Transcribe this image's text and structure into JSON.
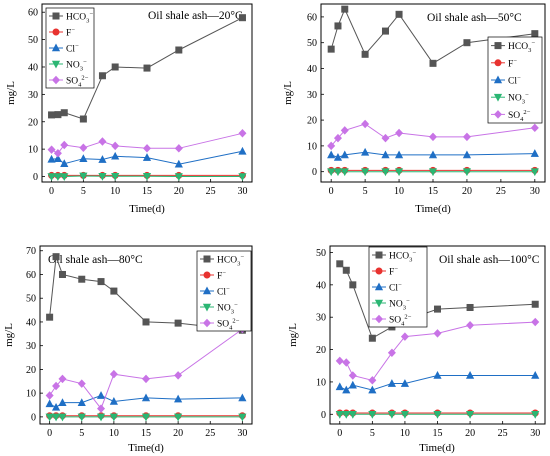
{
  "chart_data": [
    {
      "type": "line",
      "title": "Oil shale ash—20°C",
      "xlabel": "Time(d)",
      "ylabel": "mg/L",
      "xlim": [
        -1.5,
        31.5
      ],
      "ylim": [
        -2,
        63
      ],
      "xticks": [
        0,
        5,
        10,
        15,
        20,
        25,
        30
      ],
      "yticks": [
        0,
        10,
        20,
        30,
        40,
        50,
        60
      ],
      "legend_position": "top-left",
      "x": [
        0,
        1,
        2,
        5,
        8,
        10,
        15,
        20,
        30
      ],
      "series": [
        {
          "name": "HCO3⁻",
          "label": "HCO",
          "sub": "3",
          "sup": "−",
          "color": "#555555",
          "marker": "square",
          "values": [
            22.5,
            22.6,
            23.3,
            21.0,
            36.8,
            40.0,
            39.6,
            46.2,
            58.0
          ]
        },
        {
          "name": "F⁻",
          "label": "F",
          "sub": "",
          "sup": "−",
          "color": "#e8322f",
          "marker": "circle",
          "values": [
            0.4,
            0.4,
            0.4,
            0.4,
            0.4,
            0.4,
            0.4,
            0.4,
            0.4
          ]
        },
        {
          "name": "Cl⁻",
          "label": "Cl",
          "sub": "",
          "sup": "−",
          "color": "#1f6fc5",
          "marker": "triangle-up",
          "values": [
            6.3,
            6.5,
            4.7,
            6.5,
            6.2,
            7.4,
            6.9,
            4.5,
            9.2
          ]
        },
        {
          "name": "NO3⁻",
          "label": "NO",
          "sub": "3",
          "sup": "−",
          "color": "#2bb673",
          "marker": "triangle-down",
          "values": [
            0.0,
            0.0,
            0.0,
            0.2,
            0.1,
            0.1,
            0.1,
            0.0,
            0.0
          ]
        },
        {
          "name": "SO4²⁻",
          "label": "SO",
          "sub": "4",
          "sup": "2−",
          "color": "#c873e6",
          "marker": "diamond",
          "values": [
            9.8,
            8.5,
            11.5,
            10.5,
            12.8,
            11.2,
            10.3,
            10.3,
            15.8
          ]
        }
      ]
    },
    {
      "type": "line",
      "title": "Oil shale ash—50°C",
      "xlabel": "Time(d)",
      "ylabel": "mg/L",
      "xlim": [
        -1.5,
        31.5
      ],
      "ylim": [
        -4,
        65
      ],
      "xticks": [
        0,
        5,
        10,
        15,
        20,
        25,
        30
      ],
      "yticks": [
        0,
        10,
        20,
        30,
        40,
        50,
        60
      ],
      "legend_position": "right",
      "x": [
        0,
        1,
        2,
        5,
        8,
        10,
        15,
        20,
        30
      ],
      "series": [
        {
          "name": "HCO3⁻",
          "label": "HCO",
          "sub": "3",
          "sup": "−",
          "color": "#555555",
          "marker": "square",
          "values": [
            47.5,
            56.5,
            63.0,
            45.5,
            54.5,
            61.0,
            42.0,
            50.0,
            53.5
          ]
        },
        {
          "name": "F⁻",
          "label": "F",
          "sub": "",
          "sup": "−",
          "color": "#e8322f",
          "marker": "circle",
          "values": [
            0.5,
            0.5,
            0.5,
            0.5,
            0.5,
            0.5,
            0.5,
            0.5,
            0.5
          ]
        },
        {
          "name": "Cl⁻",
          "label": "Cl",
          "sub": "",
          "sup": "−",
          "color": "#1f6fc5",
          "marker": "triangle-up",
          "values": [
            6.5,
            5.5,
            6.5,
            7.5,
            6.5,
            6.5,
            6.5,
            6.5,
            7.0
          ]
        },
        {
          "name": "NO3⁻",
          "label": "NO",
          "sub": "3",
          "sup": "−",
          "color": "#2bb673",
          "marker": "triangle-down",
          "values": [
            0.0,
            0.0,
            0.0,
            0.0,
            0.0,
            0.0,
            0.0,
            0.0,
            0.0
          ]
        },
        {
          "name": "SO4²⁻",
          "label": "SO",
          "sub": "4",
          "sup": "2−",
          "color": "#c873e6",
          "marker": "diamond",
          "values": [
            10.0,
            13.0,
            16.0,
            18.5,
            13.0,
            15.0,
            13.5,
            13.5,
            17.0
          ]
        }
      ]
    },
    {
      "type": "line",
      "title": "Oil shale ash—80°C",
      "xlabel": "Time(d)",
      "ylabel": "mg/L",
      "xlim": [
        -1.5,
        31.5
      ],
      "ylim": [
        -3,
        72
      ],
      "xticks": [
        0,
        5,
        10,
        15,
        20,
        25,
        30
      ],
      "yticks": [
        0,
        10,
        20,
        30,
        40,
        50,
        60,
        70
      ],
      "legend_position": "right",
      "x": [
        0,
        1,
        2,
        5,
        8,
        10,
        15,
        20,
        30
      ],
      "series": [
        {
          "name": "HCO3⁻",
          "label": "HCO",
          "sub": "3",
          "sup": "−",
          "color": "#555555",
          "marker": "square",
          "values": [
            42.0,
            67.5,
            60.0,
            58.0,
            57.0,
            53.0,
            40.0,
            39.5,
            36.5
          ]
        },
        {
          "name": "F⁻",
          "label": "F",
          "sub": "",
          "sup": "−",
          "color": "#e8322f",
          "marker": "circle",
          "values": [
            0.5,
            0.5,
            0.5,
            0.5,
            0.5,
            0.5,
            0.5,
            0.5,
            0.5
          ]
        },
        {
          "name": "Cl⁻",
          "label": "Cl",
          "sub": "",
          "sup": "−",
          "color": "#1f6fc5",
          "marker": "triangle-up",
          "values": [
            5.5,
            4.0,
            6.0,
            6.0,
            9.0,
            6.5,
            8.0,
            7.5,
            8.0
          ]
        },
        {
          "name": "NO3⁻",
          "label": "NO",
          "sub": "3",
          "sup": "−",
          "color": "#2bb673",
          "marker": "triangle-down",
          "values": [
            0.0,
            0.0,
            0.0,
            0.0,
            0.0,
            0.0,
            0.0,
            0.0,
            0.0
          ]
        },
        {
          "name": "SO4²⁻",
          "label": "SO",
          "sub": "4",
          "sup": "2−",
          "color": "#c873e6",
          "marker": "diamond",
          "values": [
            9.0,
            13.0,
            16.0,
            14.0,
            3.5,
            18.0,
            16.0,
            17.5,
            37.0
          ]
        }
      ]
    },
    {
      "type": "line",
      "title": "Oil shale ash—100°C",
      "xlabel": "Time(d)",
      "ylabel": "mg/L",
      "xlim": [
        -1.5,
        31.5
      ],
      "ylim": [
        -3,
        52
      ],
      "xticks": [
        0,
        5,
        10,
        15,
        20,
        25,
        30
      ],
      "yticks": [
        0,
        10,
        20,
        30,
        40,
        50
      ],
      "legend_position": "top-left",
      "x": [
        0,
        1,
        2,
        5,
        8,
        10,
        15,
        20,
        30
      ],
      "series": [
        {
          "name": "HCO3⁻",
          "label": "HCO",
          "sub": "3",
          "sup": "−",
          "color": "#555555",
          "marker": "square",
          "values": [
            46.5,
            44.5,
            40.0,
            23.5,
            27.0,
            29.0,
            32.5,
            33.0,
            34.0
          ]
        },
        {
          "name": "F⁻",
          "label": "F",
          "sub": "",
          "sup": "−",
          "color": "#e8322f",
          "marker": "circle",
          "values": [
            0.4,
            0.4,
            0.4,
            0.4,
            0.4,
            0.4,
            0.4,
            0.4,
            0.4
          ]
        },
        {
          "name": "Cl⁻",
          "label": "Cl",
          "sub": "",
          "sup": "−",
          "color": "#1f6fc5",
          "marker": "triangle-up",
          "values": [
            8.5,
            7.5,
            9.0,
            7.5,
            9.5,
            9.5,
            12.0,
            12.0,
            12.0
          ]
        },
        {
          "name": "NO3⁻",
          "label": "NO",
          "sub": "3",
          "sup": "−",
          "color": "#2bb673",
          "marker": "triangle-down",
          "values": [
            0.0,
            0.0,
            0.0,
            0.0,
            0.0,
            0.0,
            0.0,
            0.0,
            0.0
          ]
        },
        {
          "name": "SO4²⁻",
          "label": "SO",
          "sub": "4",
          "sup": "2−",
          "color": "#c873e6",
          "marker": "diamond",
          "values": [
            16.5,
            16.0,
            12.0,
            10.5,
            19.0,
            24.0,
            25.0,
            27.5,
            28.5
          ]
        }
      ]
    }
  ]
}
